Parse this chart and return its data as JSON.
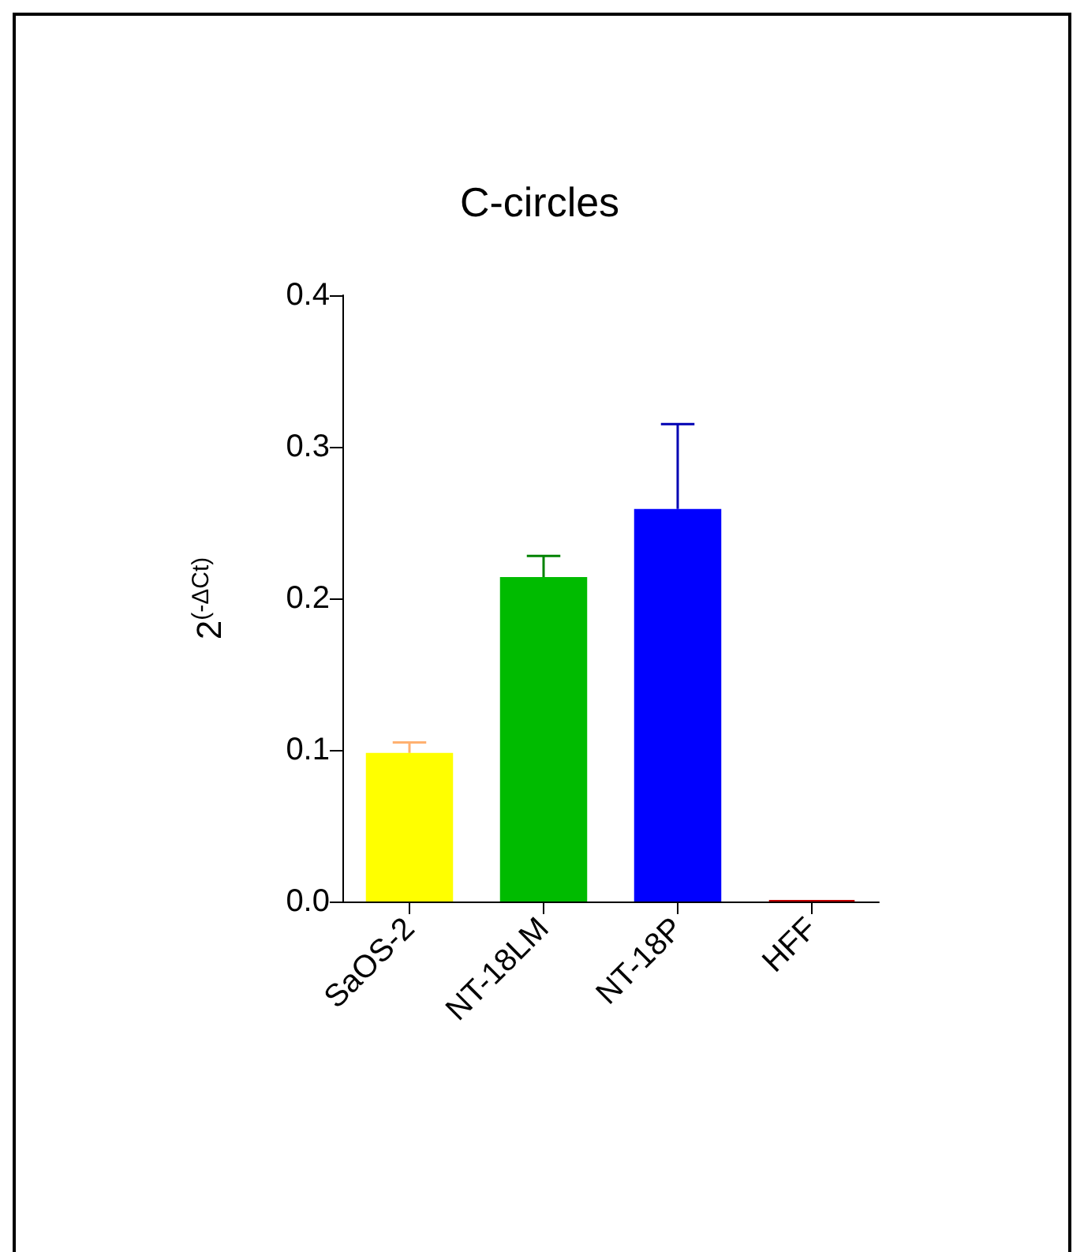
{
  "chart_data": {
    "type": "bar",
    "title": "C-circles",
    "ylabel": "2$^{(-ΔCt)}$",
    "categories": [
      "SaOS-2",
      "NT-18LM",
      "NT-18P",
      "HFF"
    ],
    "values": [
      0.098,
      0.214,
      0.259,
      0.001
    ],
    "colors": [
      "#ffff00",
      "#00bb00",
      "#0000ff",
      "#c00000"
    ],
    "errors": [
      [
        0.098,
        0.105
      ],
      [
        0.214,
        0.228
      ],
      [
        0.259,
        0.315
      ],
      null
    ],
    "ylim": [
      0,
      0.4
    ],
    "yticks": [
      {
        "value": 0,
        "label": "0.0"
      },
      {
        "value": 0.1,
        "label": "0.1"
      },
      {
        "value": 0.2,
        "label": "0.2"
      },
      {
        "value": 0.3,
        "label": "0.3"
      },
      {
        "value": 0.4,
        "label": "0.4"
      }
    ],
    "grid": false
  }
}
